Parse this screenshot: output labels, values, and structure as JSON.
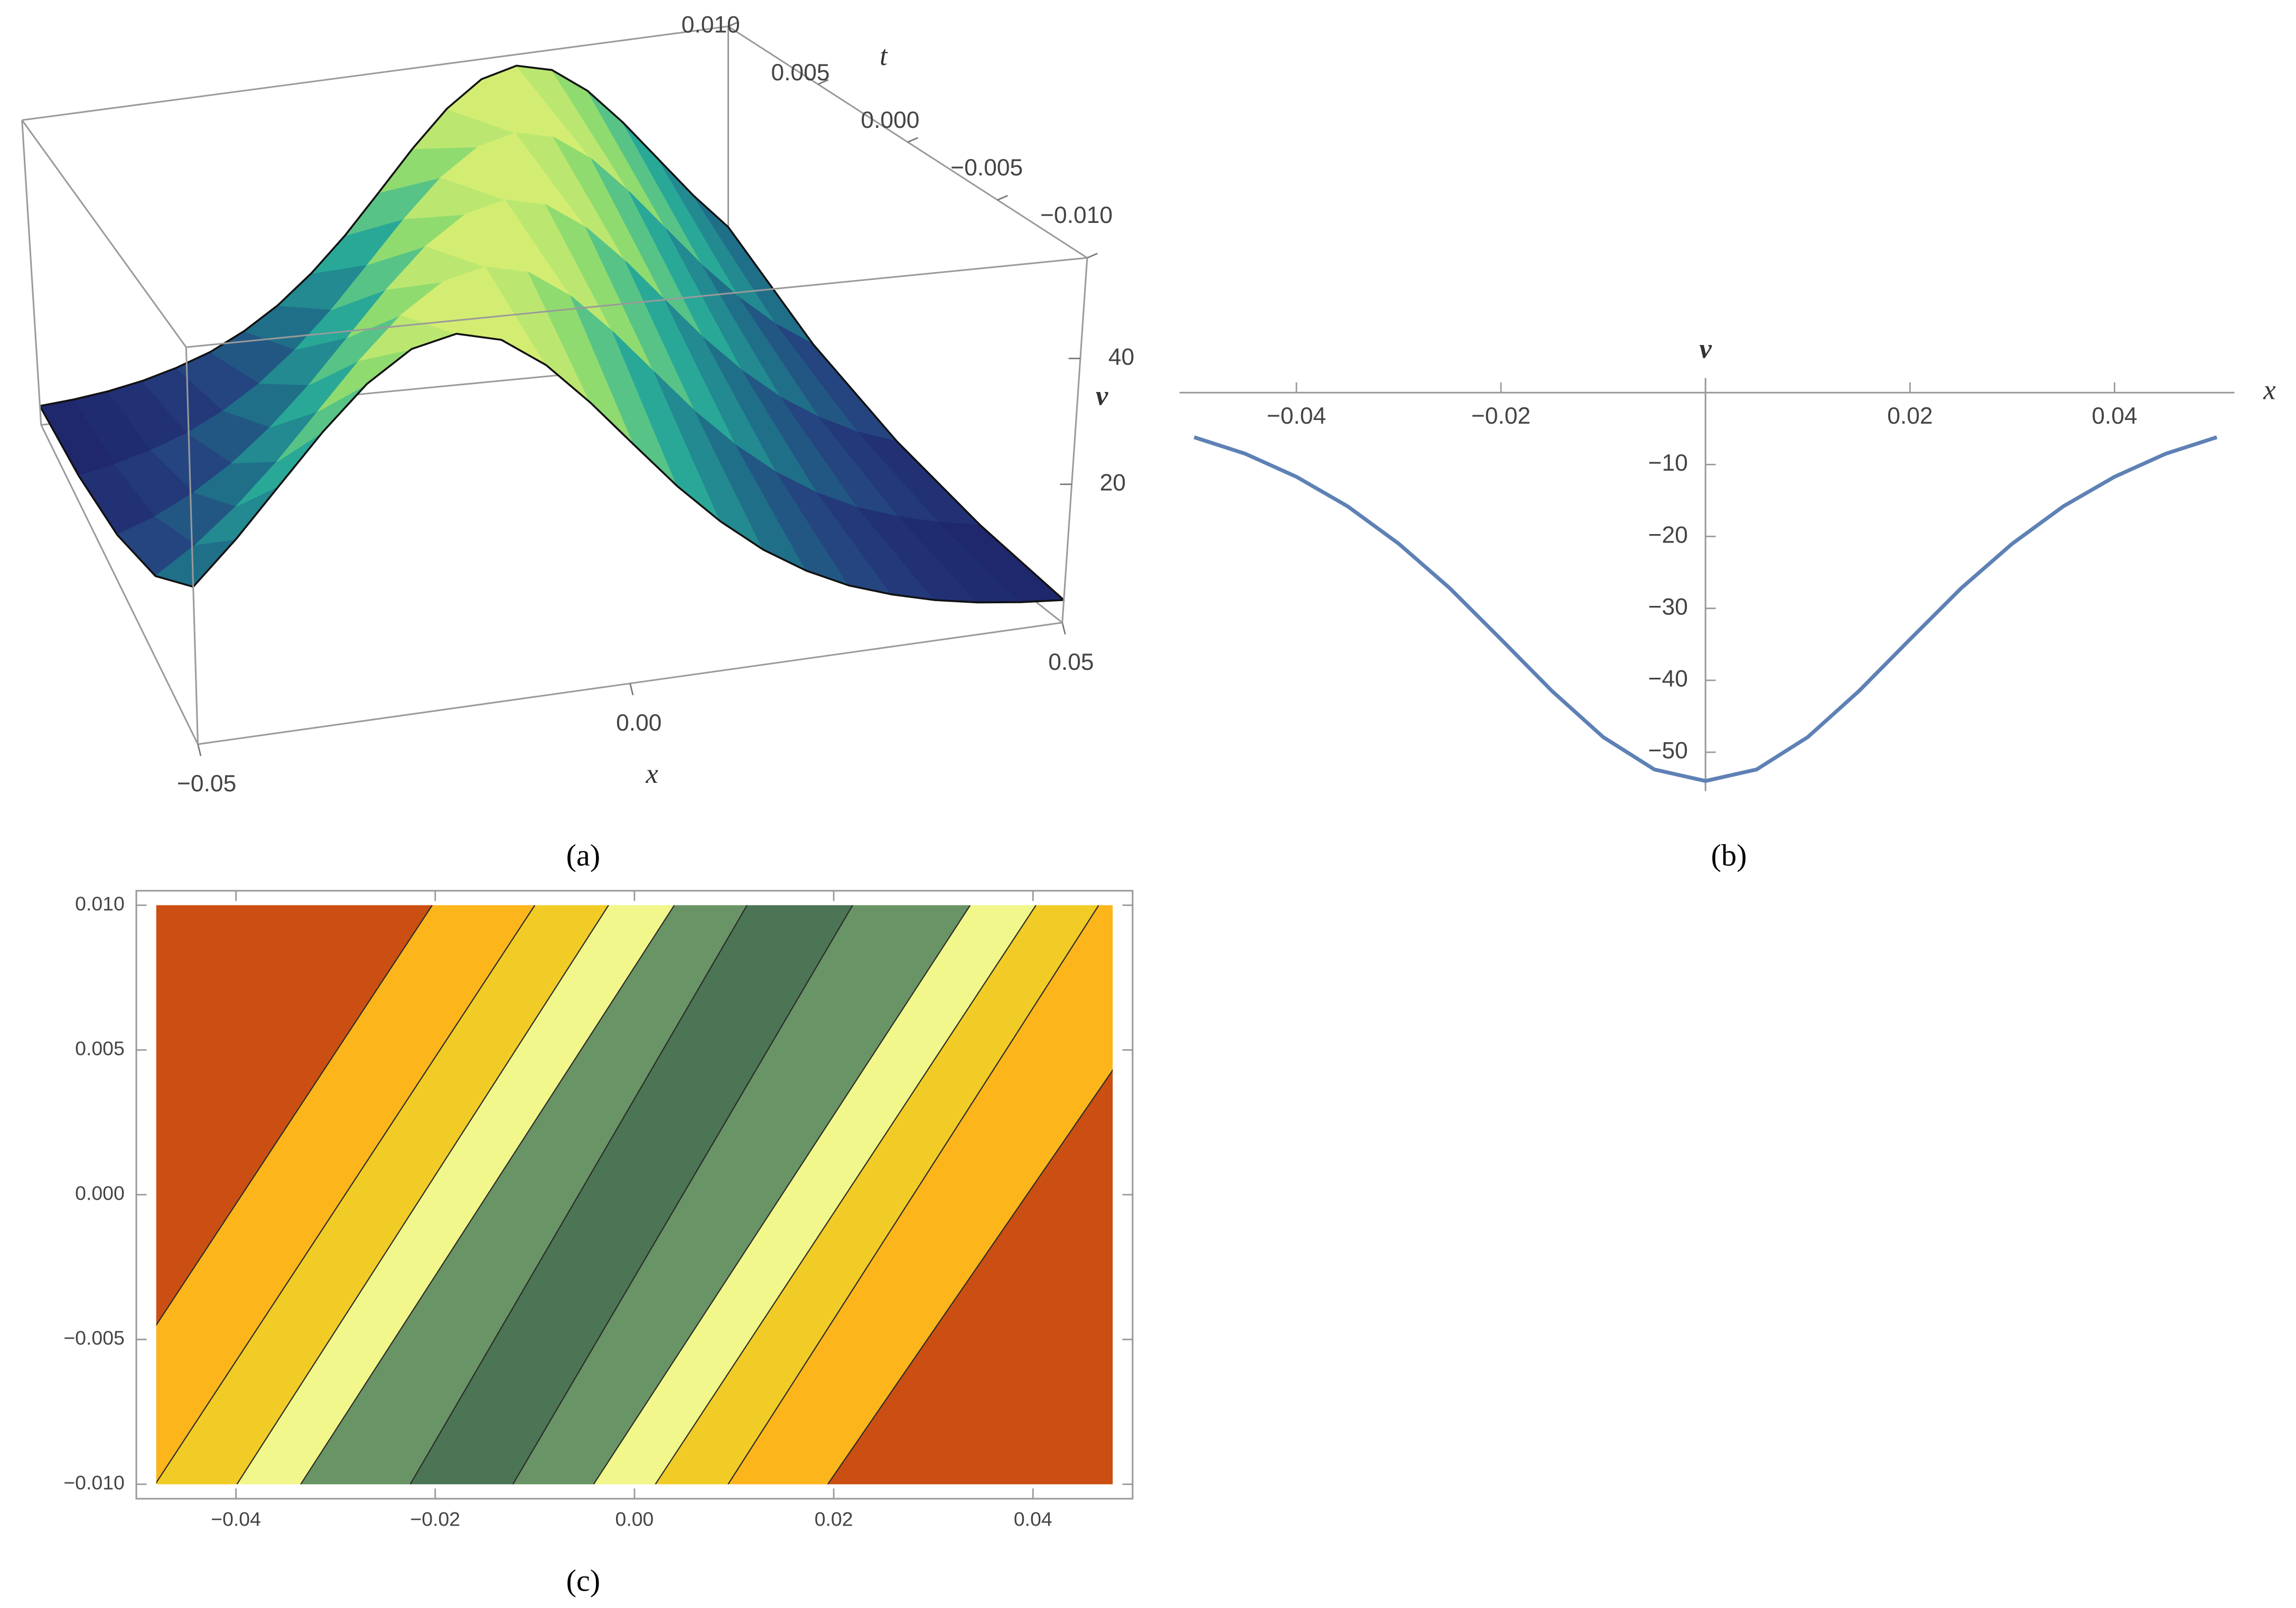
{
  "chart_data": [
    {
      "type": "surface",
      "caption": "(a)",
      "x_label": "x",
      "t_label": "t",
      "v_label": "v",
      "x": [
        -0.05,
        -0.045,
        -0.04,
        -0.035,
        -0.03,
        -0.025,
        -0.02,
        -0.015,
        -0.01,
        -0.005,
        0,
        0.005,
        0.01,
        0.015,
        0.02,
        0.025,
        0.03,
        0.035,
        0.04,
        0.045,
        0.05
      ],
      "t": [
        -0.01,
        -0.005,
        0,
        0.005,
        0.01
      ],
      "values": [
        [
          21,
          27.2,
          34.3,
          41.5,
          47.9,
          52.4,
          54,
          52.4,
          47.9,
          41.5,
          34.3,
          27.2,
          21,
          15.8,
          11.7,
          8.5,
          6.2,
          4.4,
          3.1,
          2.2,
          1.6
        ],
        [
          11.7,
          15.8,
          21,
          27.2,
          34.3,
          41.5,
          47.9,
          52.4,
          54,
          52.4,
          47.9,
          41.5,
          34.3,
          27.2,
          21,
          15.8,
          11.7,
          8.5,
          6.2,
          4.4,
          3.1
        ],
        [
          6.2,
          8.5,
          11.7,
          15.8,
          21,
          27.2,
          34.3,
          41.5,
          47.9,
          52.4,
          54,
          52.4,
          47.9,
          41.5,
          34.3,
          27.2,
          21,
          15.8,
          11.7,
          8.5,
          6.2
        ],
        [
          3.1,
          4.4,
          6.2,
          8.5,
          11.7,
          15.8,
          21,
          27.2,
          34.3,
          41.5,
          47.9,
          52.4,
          54,
          52.4,
          47.9,
          41.5,
          34.3,
          27.2,
          21,
          15.8,
          11.7
        ],
        [
          1.6,
          2.2,
          3.1,
          4.4,
          6.2,
          8.5,
          11.7,
          15.8,
          21,
          27.2,
          34.3,
          41.5,
          47.9,
          52.4,
          54,
          52.4,
          47.9,
          41.5,
          34.3,
          27.2,
          21
        ]
      ],
      "xlim": [
        -0.05,
        0.05
      ],
      "tlim": [
        -0.01,
        0.01
      ],
      "vlim": [
        -2,
        56
      ],
      "xticks": [
        {
          "value": -0.05,
          "label": "−0.05"
        },
        {
          "value": 0,
          "label": "0.00"
        },
        0.05
      ],
      "tticks": [
        {
          "value": 0.01,
          "label": "0.010"
        },
        0.005,
        {
          "value": 0,
          "label": "0.000"
        },
        {
          "value": -0.005,
          "label": "−0.005"
        },
        {
          "value": -0.01,
          "label": "−0.010"
        }
      ],
      "vticks": [
        20,
        40
      ],
      "colors": [
        "#1b1660",
        "#24407f",
        "#1f7a8c",
        "#2bb09a",
        "#93dc6e",
        "#f9f774"
      ]
    },
    {
      "type": "line",
      "caption": "(b)",
      "x_label": "x",
      "y_label": "v",
      "x": [
        -0.05,
        -0.045,
        -0.04,
        -0.035,
        -0.03,
        -0.025,
        -0.02,
        -0.015,
        -0.01,
        -0.005,
        0,
        0.005,
        0.01,
        0.015,
        0.02,
        0.025,
        0.03,
        0.035,
        0.04,
        0.045,
        0.05
      ],
      "values": [
        -6.2,
        -8.5,
        -11.7,
        -15.8,
        -21,
        -27.2,
        -34.3,
        -41.5,
        -47.9,
        -52.4,
        -54,
        -52.4,
        -47.9,
        -41.5,
        -34.3,
        -27.2,
        -21,
        -15.8,
        -11.7,
        -8.5,
        -6.2
      ],
      "color": "#5e81b5",
      "xlim": [
        -0.05,
        0.05
      ],
      "ylim": [
        -55,
        0
      ],
      "xticks": [
        {
          "value": -0.04,
          "label": "−0.04"
        },
        {
          "value": -0.02,
          "label": "−0.02"
        },
        0.02,
        0.04
      ],
      "yticks": [
        {
          "value": -10,
          "label": "−10"
        },
        {
          "value": -20,
          "label": "−20"
        },
        {
          "value": -30,
          "label": "−30"
        },
        {
          "value": -40,
          "label": "−40"
        },
        {
          "value": -50,
          "label": "−50"
        }
      ]
    },
    {
      "type": "contour",
      "caption": "(c)",
      "xlim": [
        -0.05,
        0.05
      ],
      "ylim": [
        -0.0105,
        0.0105
      ],
      "region": {
        "x": [
          -0.048,
          0.048
        ],
        "y": [
          -0.01,
          0.01
        ]
      },
      "boundaries": [
        {
          "x": [
            -0.0585,
            -0.0203
          ]
        },
        {
          "x": [
            -0.0481,
            -0.01
          ]
        },
        {
          "x": [
            -0.0399,
            -0.0026
          ]
        },
        {
          "x": [
            -0.0335,
            0.004
          ]
        },
        {
          "x": [
            -0.0225,
            0.0113
          ]
        },
        {
          "x": [
            -0.0122,
            0.0219
          ]
        },
        {
          "x": [
            -0.0041,
            0.0337
          ]
        },
        {
          "x": [
            0.0021,
            0.0403
          ]
        },
        {
          "x": [
            0.0094,
            0.0466
          ]
        },
        {
          "x": [
            0.0194,
            0.0594
          ]
        }
      ],
      "band_colors": [
        "#cb4f12",
        "#fdb51c",
        "#f2cc26",
        "#f1f78a",
        "#699465",
        "#4b7555",
        "#699465",
        "#f1f78a",
        "#f2cc26",
        "#fdb51c",
        "#cb4f12"
      ],
      "xticks": [
        {
          "value": -0.04,
          "label": "−0.04"
        },
        {
          "value": -0.02,
          "label": "−0.02"
        },
        {
          "value": 0,
          "label": "0.00"
        },
        0.02,
        0.04
      ],
      "yticks": [
        {
          "value": 0.01,
          "label": "0.010"
        },
        0.005,
        {
          "value": 0,
          "label": "0.000"
        },
        {
          "value": -0.005,
          "label": "−0.005"
        },
        {
          "value": -0.01,
          "label": "−0.010"
        }
      ]
    }
  ]
}
